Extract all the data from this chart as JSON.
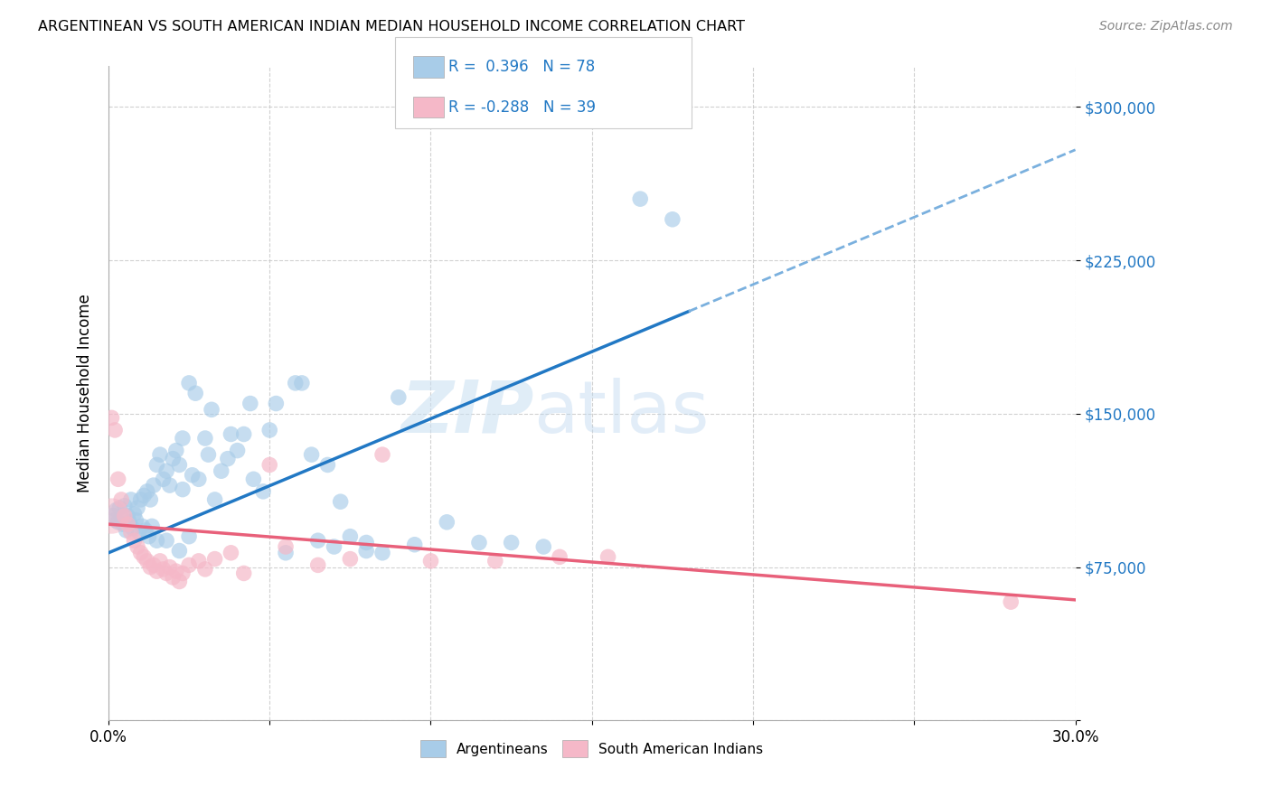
{
  "title": "ARGENTINEAN VS SOUTH AMERICAN INDIAN MEDIAN HOUSEHOLD INCOME CORRELATION CHART",
  "source": "Source: ZipAtlas.com",
  "ylabel": "Median Household Income",
  "x_ticks": [
    0.0,
    5.0,
    10.0,
    15.0,
    20.0,
    25.0,
    30.0
  ],
  "y_ticks": [
    0,
    75000,
    150000,
    225000,
    300000
  ],
  "xlim": [
    0,
    30
  ],
  "ylim": [
    0,
    320000
  ],
  "legend_r_blue": "R =  0.396",
  "legend_n_blue": "N = 78",
  "legend_r_pink": "R = -0.288",
  "legend_n_pink": "N = 39",
  "blue_color": "#a8cce8",
  "pink_color": "#f5b8c8",
  "blue_line_color": "#2178c4",
  "pink_line_color": "#e8607a",
  "dashed_line_color": "#7ab0de",
  "background_color": "#ffffff",
  "grid_color": "#cccccc",
  "blue_trend_x0": 0,
  "blue_trend_y0": 82000,
  "blue_trend_x1": 18,
  "blue_trend_y1": 200000,
  "blue_dash_x0": 18,
  "blue_dash_y0": 200000,
  "blue_dash_x1": 30,
  "blue_dash_y1": 279000,
  "pink_trend_x0": 0,
  "pink_trend_y0": 96000,
  "pink_trend_x1": 30,
  "pink_trend_y1": 59000,
  "argentineans_x": [
    0.15,
    0.2,
    0.25,
    0.3,
    0.35,
    0.4,
    0.45,
    0.5,
    0.55,
    0.6,
    0.65,
    0.7,
    0.75,
    0.8,
    0.85,
    0.9,
    0.95,
    1.0,
    1.05,
    1.1,
    1.15,
    1.2,
    1.25,
    1.3,
    1.35,
    1.4,
    1.5,
    1.6,
    1.7,
    1.8,
    1.9,
    2.0,
    2.1,
    2.2,
    2.3,
    2.5,
    2.7,
    2.8,
    3.0,
    3.2,
    3.5,
    3.7,
    4.0,
    4.5,
    5.0,
    5.5,
    6.0,
    6.5,
    7.0,
    7.5,
    8.0,
    8.5,
    9.5,
    10.5,
    11.5,
    12.5,
    13.5,
    4.8,
    3.3,
    5.2,
    6.3,
    7.2,
    4.2,
    5.8,
    6.8,
    2.3,
    2.6,
    3.1,
    3.8,
    4.4,
    9.0,
    16.5,
    17.5,
    8.0,
    2.2,
    1.8,
    2.5,
    1.5
  ],
  "argentineans_y": [
    100000,
    98000,
    103000,
    97000,
    104000,
    99000,
    96000,
    105000,
    93000,
    100000,
    97000,
    108000,
    94000,
    101000,
    98000,
    104000,
    92000,
    108000,
    95000,
    110000,
    93000,
    112000,
    90000,
    108000,
    95000,
    115000,
    125000,
    130000,
    118000,
    122000,
    115000,
    128000,
    132000,
    125000,
    138000,
    165000,
    160000,
    118000,
    138000,
    152000,
    122000,
    128000,
    132000,
    118000,
    142000,
    82000,
    165000,
    88000,
    85000,
    90000,
    87000,
    82000,
    86000,
    97000,
    87000,
    87000,
    85000,
    112000,
    108000,
    155000,
    130000,
    107000,
    140000,
    165000,
    125000,
    113000,
    120000,
    130000,
    140000,
    155000,
    158000,
    255000,
    245000,
    83000,
    83000,
    88000,
    90000,
    88000
  ],
  "argentineans_size": [
    180,
    160,
    160,
    160,
    160,
    160,
    160,
    160,
    160,
    160,
    160,
    160,
    160,
    160,
    160,
    160,
    160,
    160,
    160,
    160,
    160,
    160,
    160,
    160,
    160,
    160,
    160,
    160,
    160,
    160,
    160,
    160,
    160,
    160,
    160,
    160,
    160,
    160,
    160,
    160,
    160,
    160,
    160,
    160,
    160,
    160,
    160,
    160,
    160,
    160,
    160,
    160,
    160,
    160,
    160,
    160,
    160,
    160,
    160,
    160,
    160,
    160,
    160,
    160,
    160,
    160,
    160,
    160,
    160,
    160,
    160,
    160,
    160,
    160,
    160,
    160,
    160,
    160
  ],
  "south_american_x": [
    0.1,
    0.2,
    0.3,
    0.4,
    0.5,
    0.6,
    0.7,
    0.8,
    0.9,
    1.0,
    1.1,
    1.2,
    1.3,
    1.4,
    1.5,
    1.6,
    1.7,
    1.8,
    1.9,
    2.0,
    2.1,
    2.2,
    2.3,
    2.5,
    2.8,
    3.0,
    3.3,
    3.8,
    4.2,
    5.5,
    6.5,
    7.5,
    10.0,
    12.0,
    14.0,
    15.5,
    28.0,
    5.0,
    8.5
  ],
  "south_american_y": [
    148000,
    142000,
    118000,
    108000,
    100000,
    96000,
    92000,
    88000,
    85000,
    82000,
    80000,
    78000,
    75000,
    76000,
    73000,
    78000,
    74000,
    72000,
    75000,
    70000,
    73000,
    68000,
    72000,
    76000,
    78000,
    74000,
    79000,
    82000,
    72000,
    85000,
    76000,
    79000,
    78000,
    78000,
    80000,
    80000,
    58000,
    125000,
    130000
  ],
  "south_american_size_big": 800,
  "big_pink_x": 0.1,
  "big_pink_y": 100000
}
